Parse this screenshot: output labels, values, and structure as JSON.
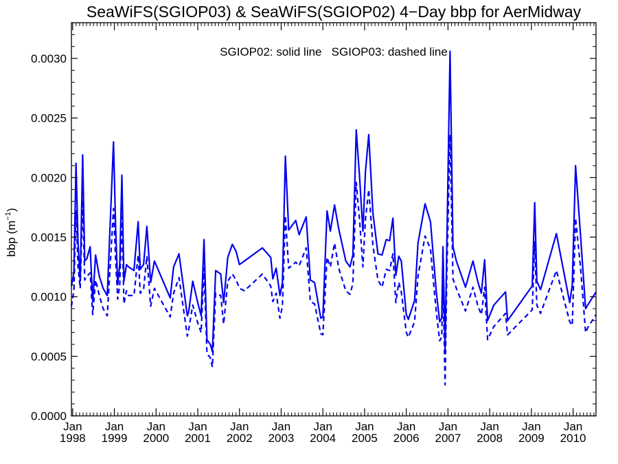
{
  "chart_data": {
    "type": "line",
    "title": "SeaWiFS(SGIOP03) & SeaWiFS(SGIOP02) 4−Day bbp for AerMidway",
    "annotation": "SGIOP02: solid line   SGIOP03: dashed line",
    "ylabel_base": "bbp (m",
    "ylabel_sup": "−1",
    "ylabel_close": ")",
    "xlim": [
      1997.97,
      2010.55
    ],
    "ylim": [
      0,
      0.0033
    ],
    "grid": false,
    "x_ticks": [
      {
        "x": 1998,
        "month": "Jan",
        "year": "1998"
      },
      {
        "x": 1999,
        "month": "Jan",
        "year": "1999"
      },
      {
        "x": 2000,
        "month": "Jan",
        "year": "2000"
      },
      {
        "x": 2001,
        "month": "Jan",
        "year": "2001"
      },
      {
        "x": 2002,
        "month": "Jan",
        "year": "2002"
      },
      {
        "x": 2003,
        "month": "Jan",
        "year": "2003"
      },
      {
        "x": 2004,
        "month": "Jan",
        "year": "2004"
      },
      {
        "x": 2005,
        "month": "Jan",
        "year": "2005"
      },
      {
        "x": 2006,
        "month": "Jan",
        "year": "2006"
      },
      {
        "x": 2007,
        "month": "Jan",
        "year": "2007"
      },
      {
        "x": 2008,
        "month": "Jan",
        "year": "2008"
      },
      {
        "x": 2009,
        "month": "Jan",
        "year": "2009"
      },
      {
        "x": 2010,
        "month": "Jan",
        "year": "2010"
      }
    ],
    "y_ticks": [
      {
        "value": 0.0,
        "label": "0.0000"
      },
      {
        "value": 0.0005,
        "label": "0.0005"
      },
      {
        "value": 0.001,
        "label": "0.0010"
      },
      {
        "value": 0.0015,
        "label": "0.0015"
      },
      {
        "value": 0.002,
        "label": "0.0020"
      },
      {
        "value": 0.0025,
        "label": "0.0025"
      },
      {
        "value": 0.003,
        "label": "0.0030"
      }
    ],
    "series": [
      {
        "dash": false,
        "color": "#0000ee",
        "points": [
          [
            1997.97,
            0.00109
          ],
          [
            1998.03,
            0.0012
          ],
          [
            1998.08,
            0.00212
          ],
          [
            1998.13,
            0.00145
          ],
          [
            1998.18,
            0.00113
          ],
          [
            1998.24,
            0.00219
          ],
          [
            1998.29,
            0.0013
          ],
          [
            1998.34,
            0.00132
          ],
          [
            1998.42,
            0.00142
          ],
          [
            1998.48,
            0.00096
          ],
          [
            1998.55,
            0.00135
          ],
          [
            1998.64,
            0.00117
          ],
          [
            1998.73,
            0.00107
          ],
          [
            1998.83,
            0.00101
          ],
          [
            1998.98,
            0.0023
          ],
          [
            1999.03,
            0.00158
          ],
          [
            1999.08,
            0.0011
          ],
          [
            1999.13,
            0.00127
          ],
          [
            1999.18,
            0.00202
          ],
          [
            1999.23,
            0.00113
          ],
          [
            1999.29,
            0.00127
          ],
          [
            1999.34,
            0.00125
          ],
          [
            1999.47,
            0.00122
          ],
          [
            1999.57,
            0.00163
          ],
          [
            1999.62,
            0.00123
          ],
          [
            1999.7,
            0.00127
          ],
          [
            1999.78,
            0.00159
          ],
          [
            1999.87,
            0.00112
          ],
          [
            1999.96,
            0.0013
          ],
          [
            2000.34,
            0.00099
          ],
          [
            2000.42,
            0.00125
          ],
          [
            2000.55,
            0.00136
          ],
          [
            2000.75,
            0.00084
          ],
          [
            2000.78,
            0.00087
          ],
          [
            2000.88,
            0.00113
          ],
          [
            2001.0,
            0.00095
          ],
          [
            2001.08,
            0.00084
          ],
          [
            2001.15,
            0.00148
          ],
          [
            2001.22,
            0.00064
          ],
          [
            2001.3,
            0.0006
          ],
          [
            2001.35,
            0.00054
          ],
          [
            2001.43,
            0.00122
          ],
          [
            2001.55,
            0.00119
          ],
          [
            2001.62,
            0.00095
          ],
          [
            2001.72,
            0.00133
          ],
          [
            2001.83,
            0.00144
          ],
          [
            2001.92,
            0.00138
          ],
          [
            2002.0,
            0.00127
          ],
          [
            2002.12,
            0.0013
          ],
          [
            2002.55,
            0.00141
          ],
          [
            2002.75,
            0.00133
          ],
          [
            2002.8,
            0.00115
          ],
          [
            2002.88,
            0.00124
          ],
          [
            2002.97,
            0.00101
          ],
          [
            2003.03,
            0.00112
          ],
          [
            2003.1,
            0.00218
          ],
          [
            2003.18,
            0.00156
          ],
          [
            2003.35,
            0.00164
          ],
          [
            2003.43,
            0.00152
          ],
          [
            2003.6,
            0.00167
          ],
          [
            2003.7,
            0.00114
          ],
          [
            2003.8,
            0.00112
          ],
          [
            2003.95,
            0.00082
          ],
          [
            2004.0,
            0.00083
          ],
          [
            2004.1,
            0.00172
          ],
          [
            2004.18,
            0.00155
          ],
          [
            2004.28,
            0.00177
          ],
          [
            2004.38,
            0.00157
          ],
          [
            2004.55,
            0.0013
          ],
          [
            2004.65,
            0.00125
          ],
          [
            2004.72,
            0.00135
          ],
          [
            2004.8,
            0.0024
          ],
          [
            2004.88,
            0.002
          ],
          [
            2004.96,
            0.00155
          ],
          [
            2005.02,
            0.00205
          ],
          [
            2005.1,
            0.00236
          ],
          [
            2005.2,
            0.0017
          ],
          [
            2005.32,
            0.00136
          ],
          [
            2005.42,
            0.00135
          ],
          [
            2005.52,
            0.00148
          ],
          [
            2005.6,
            0.00147
          ],
          [
            2005.68,
            0.00166
          ],
          [
            2005.75,
            0.00118
          ],
          [
            2005.82,
            0.00134
          ],
          [
            2005.88,
            0.0013
          ],
          [
            2006.0,
            0.00085
          ],
          [
            2006.05,
            0.00081
          ],
          [
            2006.2,
            0.00097
          ],
          [
            2006.28,
            0.00145
          ],
          [
            2006.45,
            0.00178
          ],
          [
            2006.58,
            0.00163
          ],
          [
            2006.72,
            0.00104
          ],
          [
            2006.8,
            0.00079
          ],
          [
            2006.85,
            0.00082
          ],
          [
            2006.88,
            0.00142
          ],
          [
            2006.93,
            0.00056
          ],
          [
            2006.97,
            0.00139
          ],
          [
            2007.05,
            0.00306
          ],
          [
            2007.12,
            0.00142
          ],
          [
            2007.2,
            0.0013
          ],
          [
            2007.42,
            0.00108
          ],
          [
            2007.6,
            0.0013
          ],
          [
            2007.72,
            0.00112
          ],
          [
            2007.8,
            0.00103
          ],
          [
            2007.88,
            0.00131
          ],
          [
            2007.95,
            0.0008
          ],
          [
            2008.1,
            0.00093
          ],
          [
            2008.38,
            0.00104
          ],
          [
            2008.43,
            0.0008
          ],
          [
            2009.02,
            0.00109
          ],
          [
            2009.08,
            0.00179
          ],
          [
            2009.13,
            0.00113
          ],
          [
            2009.22,
            0.00106
          ],
          [
            2009.6,
            0.00153
          ],
          [
            2009.92,
            0.00095
          ],
          [
            2009.98,
            0.0011
          ],
          [
            2010.06,
            0.0021
          ],
          [
            2010.18,
            0.00151
          ],
          [
            2010.3,
            0.0009
          ],
          [
            2010.35,
            0.00093
          ],
          [
            2010.55,
            0.00104
          ]
        ]
      },
      {
        "dash": true,
        "color": "#0000ee",
        "points": [
          [
            1997.97,
            0.00092
          ],
          [
            1998.03,
            0.00105
          ],
          [
            1998.08,
            0.00172
          ],
          [
            1998.13,
            0.00125
          ],
          [
            1998.18,
            0.00107
          ],
          [
            1998.24,
            0.00181
          ],
          [
            1998.29,
            0.00114
          ],
          [
            1998.34,
            0.00117
          ],
          [
            1998.42,
            0.0012
          ],
          [
            1998.48,
            0.00085
          ],
          [
            1998.55,
            0.00114
          ],
          [
            1998.64,
            0.00101
          ],
          [
            1998.73,
            0.0009
          ],
          [
            1998.83,
            0.00084
          ],
          [
            1998.98,
            0.00174
          ],
          [
            1999.03,
            0.00131
          ],
          [
            1999.08,
            0.00098
          ],
          [
            1999.13,
            0.0011
          ],
          [
            1999.18,
            0.00167
          ],
          [
            1999.23,
            0.00094
          ],
          [
            1999.29,
            0.00105
          ],
          [
            1999.34,
            0.00101
          ],
          [
            1999.47,
            0.00101
          ],
          [
            1999.57,
            0.00135
          ],
          [
            1999.62,
            0.00103
          ],
          [
            1999.7,
            0.00106
          ],
          [
            1999.78,
            0.00134
          ],
          [
            1999.87,
            0.00092
          ],
          [
            1999.96,
            0.00107
          ],
          [
            2000.34,
            0.00083
          ],
          [
            2000.42,
            0.00103
          ],
          [
            2000.55,
            0.00116
          ],
          [
            2000.75,
            0.00067
          ],
          [
            2000.78,
            0.00072
          ],
          [
            2000.88,
            0.00093
          ],
          [
            2001.0,
            0.00078
          ],
          [
            2001.08,
            0.0007
          ],
          [
            2001.15,
            0.00124
          ],
          [
            2001.22,
            0.00052
          ],
          [
            2001.3,
            0.00049
          ],
          [
            2001.35,
            0.00041
          ],
          [
            2001.43,
            0.00103
          ],
          [
            2001.55,
            0.00101
          ],
          [
            2001.62,
            0.00077
          ],
          [
            2001.72,
            0.00113
          ],
          [
            2001.83,
            0.00119
          ],
          [
            2001.92,
            0.00114
          ],
          [
            2002.0,
            0.00107
          ],
          [
            2002.12,
            0.00105
          ],
          [
            2002.55,
            0.00119
          ],
          [
            2002.75,
            0.00109
          ],
          [
            2002.8,
            0.00096
          ],
          [
            2002.88,
            0.00103
          ],
          [
            2002.97,
            0.00082
          ],
          [
            2003.03,
            0.00092
          ],
          [
            2003.1,
            0.00168
          ],
          [
            2003.18,
            0.00124
          ],
          [
            2003.35,
            0.00129
          ],
          [
            2003.43,
            0.00126
          ],
          [
            2003.6,
            0.00141
          ],
          [
            2003.7,
            0.00096
          ],
          [
            2003.8,
            0.00094
          ],
          [
            2003.95,
            0.00069
          ],
          [
            2004.0,
            0.00068
          ],
          [
            2004.1,
            0.00133
          ],
          [
            2004.18,
            0.00125
          ],
          [
            2004.28,
            0.00145
          ],
          [
            2004.38,
            0.00124
          ],
          [
            2004.55,
            0.00105
          ],
          [
            2004.65,
            0.00102
          ],
          [
            2004.72,
            0.00111
          ],
          [
            2004.8,
            0.00196
          ],
          [
            2004.88,
            0.00164
          ],
          [
            2004.96,
            0.00125
          ],
          [
            2005.02,
            0.00165
          ],
          [
            2005.1,
            0.0019
          ],
          [
            2005.2,
            0.00143
          ],
          [
            2005.32,
            0.00114
          ],
          [
            2005.42,
            0.00108
          ],
          [
            2005.52,
            0.00123
          ],
          [
            2005.6,
            0.00122
          ],
          [
            2005.68,
            0.00136
          ],
          [
            2005.75,
            0.00095
          ],
          [
            2005.82,
            0.00112
          ],
          [
            2005.88,
            0.00104
          ],
          [
            2006.0,
            0.0007
          ],
          [
            2006.05,
            0.00066
          ],
          [
            2006.2,
            0.00079
          ],
          [
            2006.28,
            0.00117
          ],
          [
            2006.45,
            0.00151
          ],
          [
            2006.58,
            0.0014
          ],
          [
            2006.72,
            0.00087
          ],
          [
            2006.8,
            0.00063
          ],
          [
            2006.85,
            0.00066
          ],
          [
            2006.88,
            0.00114
          ],
          [
            2006.93,
            0.00026
          ],
          [
            2006.97,
            0.00116
          ],
          [
            2007.05,
            0.00236
          ],
          [
            2007.12,
            0.00115
          ],
          [
            2007.2,
            0.00107
          ],
          [
            2007.42,
            0.00088
          ],
          [
            2007.6,
            0.00108
          ],
          [
            2007.72,
            0.00092
          ],
          [
            2007.8,
            0.00085
          ],
          [
            2007.88,
            0.00108
          ],
          [
            2007.95,
            0.00064
          ],
          [
            2008.1,
            0.00075
          ],
          [
            2008.38,
            0.00086
          ],
          [
            2008.43,
            0.00068
          ],
          [
            2009.02,
            0.00089
          ],
          [
            2009.08,
            0.00146
          ],
          [
            2009.13,
            0.00093
          ],
          [
            2009.22,
            0.00086
          ],
          [
            2009.6,
            0.00122
          ],
          [
            2009.92,
            0.00079
          ],
          [
            2009.98,
            0.00076
          ],
          [
            2010.06,
            0.00166
          ],
          [
            2010.18,
            0.00124
          ],
          [
            2010.3,
            0.0007
          ],
          [
            2010.35,
            0.00074
          ],
          [
            2010.55,
            0.00085
          ]
        ]
      }
    ]
  }
}
